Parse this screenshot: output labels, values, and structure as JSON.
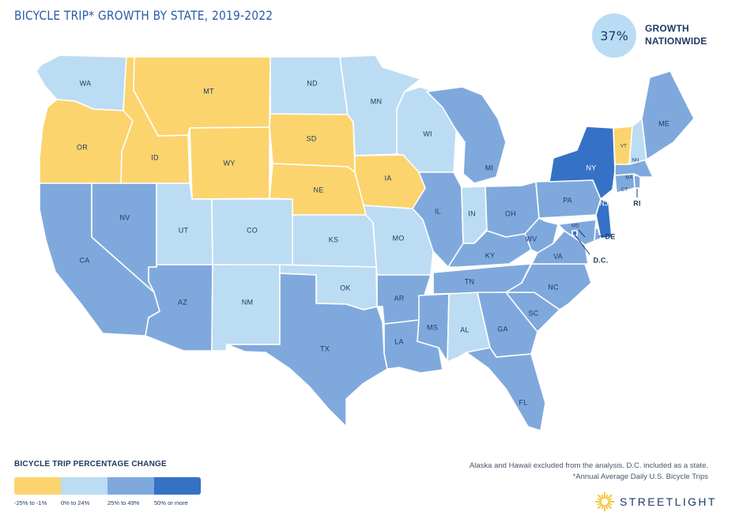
{
  "title": "Bicycle Trip* Growth by State, 2019-2022",
  "nationwide": {
    "value": "37%",
    "label_line1": "GROWTH",
    "label_line2": "NATIONWIDE"
  },
  "legend": {
    "title": "BICYCLE TRIP PERCENTAGE CHANGE",
    "bins": [
      {
        "key": "neg",
        "label": "-25% to -1%",
        "color": "#fbd46e"
      },
      {
        "key": "low",
        "label": "0% to 24%",
        "color": "#bcdcf3"
      },
      {
        "key": "mid",
        "label": "25% to 49%",
        "color": "#7fa9dd"
      },
      {
        "key": "high",
        "label": "50% or more",
        "color": "#3572c5"
      }
    ]
  },
  "notes": [
    "Alaska and Hawaii excluded from the analysis. D.C. included as a state.",
    "*Annual Average Daily U.S. Bicycle Trips"
  ],
  "brand": {
    "name": "STREETLIGHT",
    "color": "#f2c230"
  },
  "states": [
    {
      "abbr": "WA",
      "bin": "low"
    },
    {
      "abbr": "OR",
      "bin": "neg"
    },
    {
      "abbr": "CA",
      "bin": "mid"
    },
    {
      "abbr": "ID",
      "bin": "neg"
    },
    {
      "abbr": "NV",
      "bin": "mid"
    },
    {
      "abbr": "MT",
      "bin": "neg"
    },
    {
      "abbr": "WY",
      "bin": "neg"
    },
    {
      "abbr": "UT",
      "bin": "low"
    },
    {
      "abbr": "AZ",
      "bin": "mid"
    },
    {
      "abbr": "CO",
      "bin": "low"
    },
    {
      "abbr": "NM",
      "bin": "low"
    },
    {
      "abbr": "ND",
      "bin": "low"
    },
    {
      "abbr": "SD",
      "bin": "neg"
    },
    {
      "abbr": "NE",
      "bin": "neg"
    },
    {
      "abbr": "KS",
      "bin": "low"
    },
    {
      "abbr": "OK",
      "bin": "low"
    },
    {
      "abbr": "TX",
      "bin": "mid"
    },
    {
      "abbr": "MN",
      "bin": "low"
    },
    {
      "abbr": "IA",
      "bin": "neg"
    },
    {
      "abbr": "MO",
      "bin": "low"
    },
    {
      "abbr": "AR",
      "bin": "mid"
    },
    {
      "abbr": "LA",
      "bin": "mid"
    },
    {
      "abbr": "WI",
      "bin": "low"
    },
    {
      "abbr": "IL",
      "bin": "mid"
    },
    {
      "abbr": "IN",
      "bin": "low"
    },
    {
      "abbr": "MI",
      "bin": "mid"
    },
    {
      "abbr": "OH",
      "bin": "mid"
    },
    {
      "abbr": "KY",
      "bin": "mid"
    },
    {
      "abbr": "TN",
      "bin": "mid"
    },
    {
      "abbr": "MS",
      "bin": "mid"
    },
    {
      "abbr": "AL",
      "bin": "low"
    },
    {
      "abbr": "GA",
      "bin": "mid"
    },
    {
      "abbr": "FL",
      "bin": "mid"
    },
    {
      "abbr": "SC",
      "bin": "mid"
    },
    {
      "abbr": "NC",
      "bin": "mid"
    },
    {
      "abbr": "VA",
      "bin": "mid"
    },
    {
      "abbr": "WV",
      "bin": "mid"
    },
    {
      "abbr": "PA",
      "bin": "mid"
    },
    {
      "abbr": "NY",
      "bin": "high"
    },
    {
      "abbr": "NJ",
      "bin": "high"
    },
    {
      "abbr": "DE",
      "bin": "mid"
    },
    {
      "abbr": "MD",
      "bin": "mid"
    },
    {
      "abbr": "D.C.",
      "bin": "high"
    },
    {
      "abbr": "CT",
      "bin": "mid"
    },
    {
      "abbr": "RI",
      "bin": "mid"
    },
    {
      "abbr": "MA",
      "bin": "mid"
    },
    {
      "abbr": "VT",
      "bin": "neg"
    },
    {
      "abbr": "NH",
      "bin": "low"
    },
    {
      "abbr": "ME",
      "bin": "mid"
    }
  ]
}
